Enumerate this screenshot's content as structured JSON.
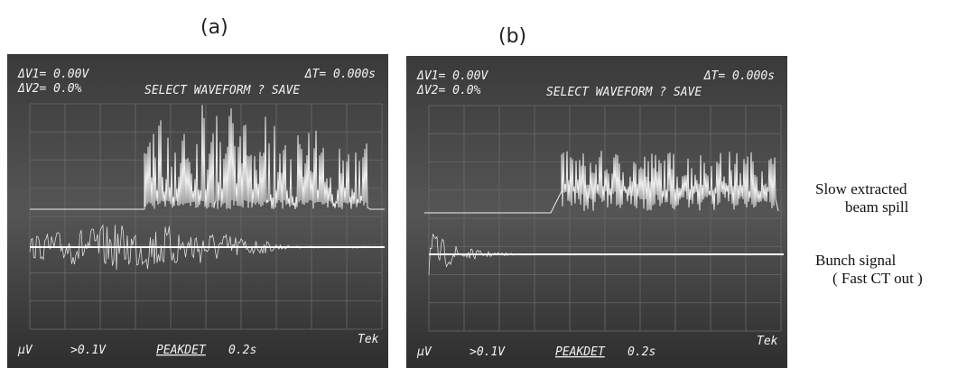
{
  "panels": [
    {
      "label": "(a)",
      "readout_dv1": "ΔV1= 0.00V",
      "readout_dv2": "ΔV2= 0.0%",
      "readout_dt": "ΔT= 0.000s",
      "menu": "SELECT WAVEFORM ? SAVE",
      "channel": "µV",
      "scale": ">0.1V",
      "mode": "PEAKDET",
      "time": "0.2s",
      "brand": "Tek"
    },
    {
      "label": "(b)",
      "readout_dv1": "ΔV1= 0.00V",
      "readout_dv2": "ΔV2= 0.0%",
      "readout_dt": "ΔT= 0.000s",
      "menu": "SELECT WAVEFORM ? SAVE",
      "channel": "µV",
      "scale": ">0.1V",
      "mode": "PEAKDET",
      "time": "0.2s",
      "brand": "Tek"
    }
  ],
  "side_labels": {
    "spill_line1": "Slow  extracted",
    "spill_line2": "beam spill",
    "bunch_line1": "Bunch  signal",
    "bunch_line2": "( Fast CT  out )"
  }
}
